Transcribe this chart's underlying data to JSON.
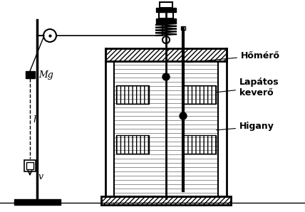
{
  "bg_color": "#ffffff",
  "line_color": "#000000",
  "labels": {
    "Mg": "Mg",
    "h": "h",
    "v": "v",
    "thermometer": "Hőmérő",
    "stirrer": "Lapátos\nkeverő",
    "mercury": "Higany"
  },
  "fig_width": 4.28,
  "fig_height": 2.98,
  "dpi": 100
}
